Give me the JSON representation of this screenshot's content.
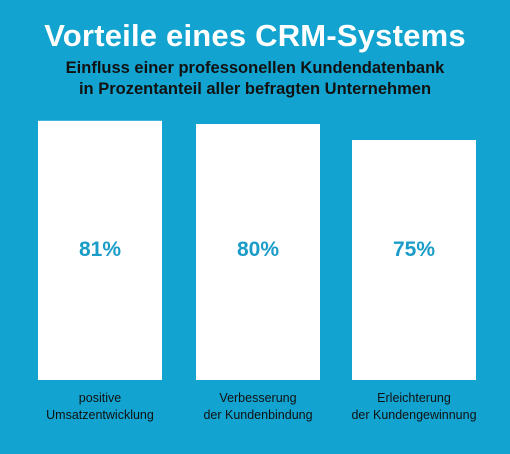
{
  "chart_data": {
    "type": "bar",
    "title": "Vorteile eines CRM-Systems",
    "subtitle": [
      "Einfluss einer professonellen Kundendatenbank",
      "in Prozentanteil aller befragten Unternehmen"
    ],
    "categories": [
      [
        "positive",
        "Umsatzentwicklung"
      ],
      [
        "Verbesserung",
        "der Kundenbindung"
      ],
      [
        "Erleichterung",
        "der Kundengewinnung"
      ]
    ],
    "values": [
      81,
      80,
      75
    ],
    "data_labels": [
      "81%",
      "80%",
      "75%"
    ],
    "unit": "%",
    "ylim": [
      0,
      100
    ],
    "grid": false,
    "legend": "none"
  },
  "colors": {
    "background": "#12a3d0",
    "bar": "#ffffff",
    "value_label": "#1a9cc9",
    "title": "#ffffff",
    "subtitle": "#111111"
  }
}
